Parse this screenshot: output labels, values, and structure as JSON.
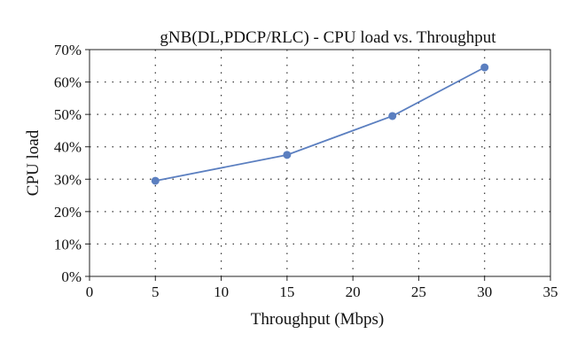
{
  "chart_data": {
    "type": "line",
    "title": "gNB(DL,PDCP/RLC) - CPU load vs. Throughput",
    "xlabel": "Throughput (Mbps)",
    "ylabel": "CPU load",
    "xlim": [
      0,
      35
    ],
    "ylim": [
      0,
      70
    ],
    "xticks": [
      0,
      5,
      10,
      15,
      20,
      25,
      30,
      35
    ],
    "yticks": [
      0,
      10,
      20,
      30,
      40,
      50,
      60,
      70
    ],
    "xtick_labels": [
      "0",
      "5",
      "10",
      "15",
      "20",
      "25",
      "30",
      "35"
    ],
    "ytick_labels": [
      "0%",
      "10%",
      "20%",
      "30%",
      "40%",
      "50%",
      "60%",
      "70%"
    ],
    "grid": "dotted",
    "series": [
      {
        "x": [
          5,
          15,
          23,
          30
        ],
        "y": [
          29.5,
          37.5,
          49.5,
          64.5
        ],
        "color": "#5b7fc0"
      }
    ]
  }
}
